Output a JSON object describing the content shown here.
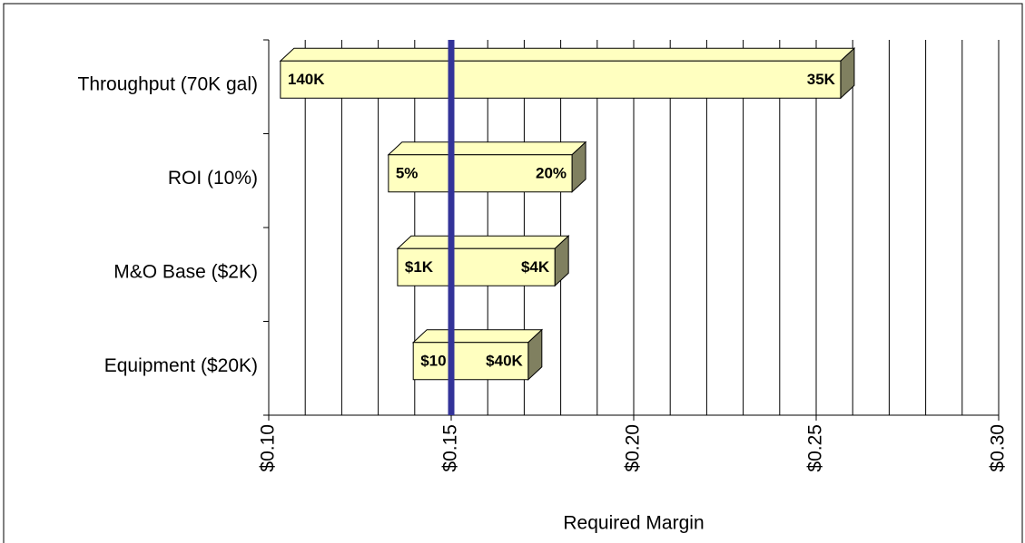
{
  "chart_data": {
    "type": "tornado",
    "categories": [
      "Throughput (70K gal)",
      "ROI (10%)",
      "M&O Base ($2K)",
      "Equipment ($20K)"
    ],
    "low": [
      0.1032,
      0.1328,
      0.1353,
      0.1396
    ],
    "high": [
      0.2567,
      0.1831,
      0.1784,
      0.1711
    ],
    "low_labels": [
      "140K",
      "5%",
      "$1K",
      "$10"
    ],
    "high_labels": [
      "35K",
      "20%",
      "$4K",
      "$40K"
    ],
    "color": "#ffffc0",
    "base_value": 0.15,
    "base_color": "#333399",
    "x_label": "Required Margin",
    "xlim": [
      0.1,
      0.3
    ],
    "xticks": [
      {
        "value": 0.1,
        "label": "$0.10"
      },
      {
        "value": 0.15,
        "label": "$0.15"
      },
      {
        "value": 0.2,
        "label": "$0.20"
      },
      {
        "value": 0.25,
        "label": "$0.25"
      },
      {
        "value": 0.3,
        "label": "$0.30"
      }
    ],
    "xgrid": [
      0.1,
      0.11,
      0.12,
      0.13,
      0.14,
      0.15,
      0.16,
      0.17,
      0.18,
      0.19,
      0.2,
      0.21,
      0.22,
      0.23,
      0.24,
      0.25,
      0.26,
      0.27,
      0.28,
      0.29,
      0.3
    ],
    "grid": true
  }
}
